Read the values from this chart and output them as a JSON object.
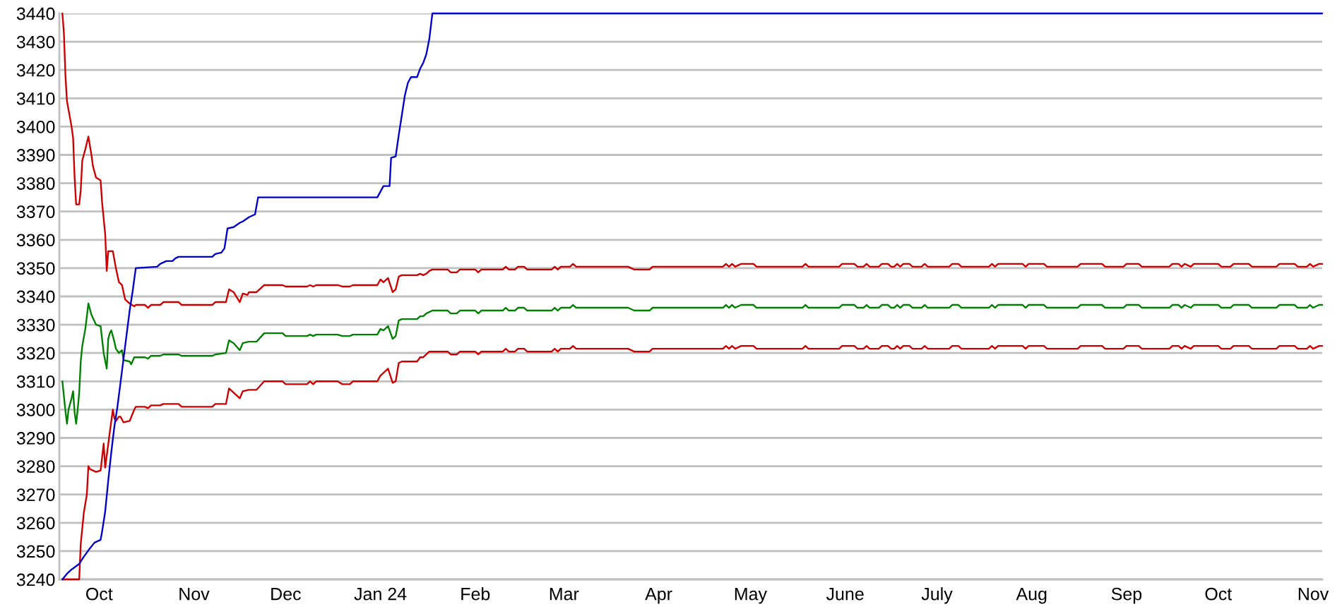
{
  "chart_data": {
    "type": "line",
    "xlim": [
      "2023-09-18",
      "2024-11-04"
    ],
    "xticks": [
      {
        "value": "2023-10-01",
        "label": "Oct"
      },
      {
        "value": "2023-11-01",
        "label": "Nov"
      },
      {
        "value": "2023-12-01",
        "label": "Dec"
      },
      {
        "value": "2024-01-01",
        "label": "Jan 24"
      },
      {
        "value": "2024-02-01",
        "label": "Feb"
      },
      {
        "value": "2024-03-01",
        "label": "Mar"
      },
      {
        "value": "2024-04-01",
        "label": "Apr"
      },
      {
        "value": "2024-05-01",
        "label": "May"
      },
      {
        "value": "2024-06-01",
        "label": "June"
      },
      {
        "value": "2024-07-01",
        "label": "July"
      },
      {
        "value": "2024-08-01",
        "label": "Aug"
      },
      {
        "value": "2024-09-01",
        "label": "Sep"
      },
      {
        "value": "2024-10-01",
        "label": "Oct"
      },
      {
        "value": "2024-11-01",
        "label": "Nov"
      }
    ],
    "ylim": [
      3240,
      3440
    ],
    "yticks": [
      3240,
      3250,
      3260,
      3270,
      3280,
      3290,
      3300,
      3310,
      3320,
      3330,
      3340,
      3350,
      3360,
      3370,
      3380,
      3390,
      3400,
      3410,
      3420,
      3430,
      3440
    ],
    "grid": "y",
    "series": [
      {
        "color": "#cc0000",
        "x": [
          "2023-09-19",
          "2023-09-19T12:00",
          "2023-09-20",
          "2023-09-20T12:00",
          "2023-09-21",
          "2023-09-22",
          "2023-09-22T12:00",
          "2023-09-23",
          "2023-09-23T12:00",
          "2023-09-24T12:00",
          "2023-09-25",
          "2023-09-25T12:00",
          "2023-09-26T12:00",
          "2023-09-27T12:00",
          "2023-09-28T12:00",
          "2023-09-29",
          "2023-09-30",
          "2023-10-01T12:00",
          "2023-10-02",
          "2023-10-03",
          "2023-10-03T12:00",
          "2023-10-04",
          "2023-10-05T12:00",
          "2023-10-06T12:00",
          "2023-10-07T12:00",
          "2023-10-08T12:00",
          "2023-10-09T12:00",
          "2023-10-11",
          "2023-10-12T12:00",
          "2023-10-13",
          "2023-10-16",
          "2023-10-17",
          "2023-10-18",
          "2023-10-21",
          "2023-10-22",
          "2023-10-27",
          "2023-10-28",
          "2023-11-07",
          "2023-11-08",
          "2023-11-11T12:00",
          "2023-11-12T12:00",
          "2023-11-14",
          "2023-11-16",
          "2023-11-17",
          "2023-11-18T12:00",
          "2023-11-19",
          "2023-11-21T12:00",
          "2023-11-24",
          "2023-11-30",
          "2023-12-01",
          "2023-12-08",
          "2023-12-09",
          "2023-12-10",
          "2023-12-11",
          "2023-12-18",
          "2023-12-19T12:00",
          "2023-12-22",
          "2023-12-23",
          "2023-12-31",
          "2024-01-01",
          "2024-01-02",
          "2024-01-03T12:00",
          "2024-01-05",
          "2024-01-06",
          "2024-01-07",
          "2024-01-08",
          "2024-01-13",
          "2024-01-14",
          "2024-01-15",
          "2024-01-16",
          "2024-01-17",
          "2024-01-18",
          "2024-01-23",
          "2024-01-24",
          "2024-01-26",
          "2024-01-27",
          "2024-02-01",
          "2024-02-02",
          "2024-02-03",
          "2024-02-10",
          "2024-02-11",
          "2024-02-12",
          "2024-02-14",
          "2024-02-15",
          "2024-02-17",
          "2024-02-18",
          "2024-02-26",
          "2024-02-27",
          "2024-02-28",
          "2024-02-29",
          "2024-03-03",
          "2024-03-04",
          "2024-03-05",
          "2024-03-22",
          "2024-03-24",
          "2024-03-29",
          "2024-03-30",
          "2024-04-22",
          "2024-04-23",
          "2024-04-24",
          "2024-04-25",
          "2024-04-26",
          "2024-04-28",
          "2024-05-02",
          "2024-05-03",
          "2024-05-18",
          "2024-05-19",
          "2024-05-20",
          "2024-05-30",
          "2024-05-31",
          "2024-06-04",
          "2024-06-05",
          "2024-06-07",
          "2024-06-08",
          "2024-06-09",
          "2024-06-12",
          "2024-06-13",
          "2024-06-15",
          "2024-06-16",
          "2024-06-17",
          "2024-06-18",
          "2024-06-19",
          "2024-06-20",
          "2024-06-22",
          "2024-06-23",
          "2024-06-26",
          "2024-06-27",
          "2024-06-28",
          "2024-07-05",
          "2024-07-06",
          "2024-07-08",
          "2024-07-09",
          "2024-07-18",
          "2024-07-19",
          "2024-07-20",
          "2024-07-21",
          "2024-07-29",
          "2024-07-30",
          "2024-07-31",
          "2024-08-05",
          "2024-08-06",
          "2024-08-16",
          "2024-08-17",
          "2024-08-24",
          "2024-08-25",
          "2024-08-31",
          "2024-09-01",
          "2024-09-05",
          "2024-09-06",
          "2024-09-15",
          "2024-09-16",
          "2024-09-18",
          "2024-09-19",
          "2024-09-20",
          "2024-09-22",
          "2024-09-23",
          "2024-10-01",
          "2024-10-02",
          "2024-10-05",
          "2024-10-06",
          "2024-10-11",
          "2024-10-12",
          "2024-10-20",
          "2024-10-21",
          "2024-10-26",
          "2024-10-27",
          "2024-10-30",
          "2024-10-31",
          "2024-11-01",
          "2024-11-03",
          "2024-11-04"
        ],
        "values": [
          3440,
          3433,
          3418,
          3409,
          3406,
          3400,
          3396,
          3382,
          3372.5,
          3372.5,
          3377.5,
          3388,
          3392,
          3396.5,
          3390,
          3386,
          3382,
          3381,
          3373,
          3362,
          3349,
          3356,
          3356,
          3350,
          3345,
          3344,
          3339,
          3337.5,
          3336.5,
          3337,
          3337,
          3336,
          3337,
          3337,
          3338,
          3338,
          3337,
          3337,
          3338,
          3338,
          3342.5,
          3341.5,
          3338,
          3341,
          3340.5,
          3341.5,
          3341.5,
          3344,
          3344,
          3343.5,
          3343.5,
          3344,
          3343.5,
          3344,
          3344,
          3343.5,
          3343.5,
          3344,
          3344,
          3346,
          3345,
          3346.5,
          3341.5,
          3342.5,
          3347,
          3347.5,
          3347.5,
          3348,
          3347.5,
          3348,
          3349,
          3349.5,
          3349.5,
          3348.5,
          3348.5,
          3349.5,
          3349.5,
          3348.5,
          3349.5,
          3349.5,
          3350.5,
          3349.5,
          3349.5,
          3350.5,
          3350.5,
          3349.5,
          3349.5,
          3350.5,
          3349.5,
          3350.5,
          3350.5,
          3351.5,
          3350.5,
          3350.5,
          3349.5,
          3349.5,
          3350.5,
          3350.5,
          3351.5,
          3350.5,
          3351.5,
          3350.5,
          3351.5,
          3351.5,
          3350.5,
          3350.5,
          3351.5,
          3350.5,
          3350.5,
          3351.5,
          3351.5,
          3350.5,
          3350.5,
          3351.5,
          3350.5,
          3350.5,
          3351.5,
          3351.5,
          3350.5,
          3350.5,
          3351.5,
          3350.5,
          3351.5,
          3351.5,
          3350.5,
          3350.5,
          3351.5,
          3350.5,
          3350.5,
          3351.5,
          3351.5,
          3350.5,
          3350.5,
          3351.5,
          3350.5,
          3351.5,
          3351.5,
          3350.5,
          3351.5,
          3351.5,
          3350.5,
          3350.5,
          3351.5,
          3351.5,
          3350.5,
          3350.5,
          3351.5,
          3351.5,
          3350.5,
          3350.5,
          3351.5,
          3351.5,
          3350.5,
          3351.5,
          3350.5,
          3351.5,
          3351.5,
          3350.5,
          3350.5,
          3351.5,
          3351.5,
          3350.5,
          3350.5,
          3351.5,
          3351.5,
          3350.5,
          3350.5,
          3351.5,
          3350.5,
          3351.5,
          3351.5
        ]
      },
      {
        "color": "#008000",
        "x": [
          "2023-09-19",
          "2023-09-20",
          "2023-09-20T12:00",
          "2023-09-21",
          "2023-09-22",
          "2023-09-22T12:00",
          "2023-09-23",
          "2023-09-23T12:00",
          "2023-09-24",
          "2023-09-24T12:00",
          "2023-09-25",
          "2023-09-25T12:00",
          "2023-09-26T12:00",
          "2023-09-27T12:00",
          "2023-09-28T12:00",
          "2023-09-30",
          "2023-10-01T12:00",
          "2023-10-02T12:00",
          "2023-10-03T12:00",
          "2023-10-04",
          "2023-10-04T12:00",
          "2023-10-05",
          "2023-10-06",
          "2023-10-06T12:00",
          "2023-10-07T12:00",
          "2023-10-08T12:00",
          "2023-10-09",
          "2023-10-11",
          "2023-10-11T12:00",
          "2023-10-12T12:00",
          "2023-10-16",
          "2023-10-17",
          "2023-10-18",
          "2023-10-21",
          "2023-10-22",
          "2023-10-27",
          "2023-10-28",
          "2023-11-07",
          "2023-11-08",
          "2023-11-11T12:00",
          "2023-11-12T12:00",
          "2023-11-14",
          "2023-11-16",
          "2023-11-17",
          "2023-11-19",
          "2023-11-21T12:00",
          "2023-11-24",
          "2023-11-30",
          "2023-12-01",
          "2023-12-08",
          "2023-12-09",
          "2023-12-10",
          "2023-12-11",
          "2023-12-18",
          "2023-12-19T12:00",
          "2023-12-22",
          "2023-12-23",
          "2023-12-31",
          "2024-01-01",
          "2024-01-02",
          "2024-01-03T12:00",
          "2024-01-05",
          "2024-01-06",
          "2024-01-07",
          "2024-01-08",
          "2024-01-13",
          "2024-01-14",
          "2024-01-15",
          "2024-01-16",
          "2024-01-17",
          "2024-01-18",
          "2024-01-23",
          "2024-01-24",
          "2024-01-26",
          "2024-01-27",
          "2024-02-01",
          "2024-02-02",
          "2024-02-03",
          "2024-02-10",
          "2024-02-11",
          "2024-02-12",
          "2024-02-14",
          "2024-02-15",
          "2024-02-17",
          "2024-02-18",
          "2024-02-26",
          "2024-02-27",
          "2024-02-28",
          "2024-02-29",
          "2024-03-03",
          "2024-03-04",
          "2024-03-05",
          "2024-03-22",
          "2024-03-24",
          "2024-03-29",
          "2024-03-30",
          "2024-04-22",
          "2024-04-23",
          "2024-04-24",
          "2024-04-25",
          "2024-04-26",
          "2024-04-28",
          "2024-05-02",
          "2024-05-03",
          "2024-05-18",
          "2024-05-19",
          "2024-05-20",
          "2024-05-30",
          "2024-05-31",
          "2024-06-04",
          "2024-06-05",
          "2024-06-07",
          "2024-06-08",
          "2024-06-09",
          "2024-06-12",
          "2024-06-13",
          "2024-06-15",
          "2024-06-16",
          "2024-06-17",
          "2024-06-18",
          "2024-06-19",
          "2024-06-20",
          "2024-06-22",
          "2024-06-23",
          "2024-06-26",
          "2024-06-27",
          "2024-06-28",
          "2024-07-05",
          "2024-07-06",
          "2024-07-08",
          "2024-07-09",
          "2024-07-18",
          "2024-07-19",
          "2024-07-20",
          "2024-07-21",
          "2024-07-29",
          "2024-07-30",
          "2024-07-31",
          "2024-08-05",
          "2024-08-06",
          "2024-08-16",
          "2024-08-17",
          "2024-08-24",
          "2024-08-25",
          "2024-08-31",
          "2024-09-01",
          "2024-09-05",
          "2024-09-06",
          "2024-09-15",
          "2024-09-16",
          "2024-09-18",
          "2024-09-19",
          "2024-09-20",
          "2024-09-22",
          "2024-09-23",
          "2024-10-01",
          "2024-10-02",
          "2024-10-05",
          "2024-10-06",
          "2024-10-11",
          "2024-10-12",
          "2024-10-20",
          "2024-10-21",
          "2024-10-26",
          "2024-10-27",
          "2024-10-30",
          "2024-10-31",
          "2024-11-01",
          "2024-11-03",
          "2024-11-04"
        ],
        "values": [
          3310,
          3299.5,
          3295,
          3300,
          3304,
          3306.5,
          3299,
          3295,
          3300,
          3306,
          3317,
          3322.5,
          3328.5,
          3337.5,
          3333.5,
          3330,
          3329.5,
          3320,
          3314.5,
          3325,
          3327,
          3328,
          3324,
          3321.5,
          3320,
          3321,
          3317.5,
          3317,
          3316,
          3318.5,
          3318.5,
          3318,
          3319,
          3319,
          3319.5,
          3319.5,
          3319,
          3319,
          3319.5,
          3320,
          3324.5,
          3323.5,
          3321,
          3323.5,
          3324,
          3324,
          3327,
          3327,
          3326,
          3326,
          3326.5,
          3326,
          3326.5,
          3326.5,
          3326,
          3326,
          3326.5,
          3326.5,
          3328.5,
          3328,
          3329.5,
          3325,
          3326,
          3331.5,
          3332,
          3332,
          3333,
          3333,
          3334,
          3334.5,
          3335,
          3335,
          3334,
          3334,
          3335,
          3335,
          3334,
          3335,
          3335,
          3336,
          3335,
          3335,
          3336,
          3336,
          3335,
          3335,
          3336,
          3335,
          3336,
          3336,
          3337,
          3336,
          3336,
          3335,
          3335,
          3336,
          3336,
          3337,
          3336,
          3337,
          3336,
          3337,
          3337,
          3336,
          3336,
          3337,
          3336,
          3336,
          3337,
          3337,
          3336,
          3336,
          3337,
          3336,
          3336,
          3337,
          3337,
          3336,
          3336,
          3337,
          3336,
          3337,
          3337,
          3336,
          3336,
          3337,
          3336,
          3336,
          3337,
          3337,
          3336,
          3336,
          3337,
          3336,
          3337,
          3337,
          3336,
          3337,
          3337,
          3336,
          3336,
          3337,
          3337,
          3336,
          3336,
          3337,
          3337,
          3336,
          3336,
          3337,
          3337,
          3336,
          3337,
          3336,
          3337,
          3337,
          3336,
          3336,
          3337,
          3337,
          3336,
          3336,
          3337,
          3337,
          3336,
          3336,
          3337,
          3336,
          3337,
          3337
        ]
      },
      {
        "color": "#cc0000",
        "x": [
          "2023-09-19",
          "2023-09-24T12:00",
          "2023-09-25",
          "2023-09-26",
          "2023-09-27",
          "2023-09-27T12:00",
          "2023-09-28",
          "2023-09-30",
          "2023-10-01T12:00",
          "2023-10-02T12:00",
          "2023-10-03",
          "2023-10-04T12:00",
          "2023-10-05T12:00",
          "2023-10-06",
          "2023-10-06T12:00",
          "2023-10-07T12:00",
          "2023-10-08",
          "2023-10-09",
          "2023-10-11",
          "2023-10-12T12:00",
          "2023-10-13",
          "2023-10-16",
          "2023-10-17",
          "2023-10-18",
          "2023-10-21",
          "2023-10-22",
          "2023-10-27",
          "2023-10-28",
          "2023-11-07",
          "2023-11-08",
          "2023-11-11T12:00",
          "2023-11-12T12:00",
          "2023-11-14",
          "2023-11-16",
          "2023-11-17",
          "2023-11-19",
          "2023-11-21T12:00",
          "2023-11-24",
          "2023-11-30",
          "2023-12-01",
          "2023-12-08",
          "2023-12-09",
          "2023-12-10",
          "2023-12-11",
          "2023-12-18",
          "2023-12-19T12:00",
          "2023-12-22",
          "2023-12-23",
          "2023-12-31",
          "2024-01-01",
          "2024-01-02",
          "2024-01-03T12:00",
          "2024-01-05",
          "2024-01-06",
          "2024-01-07",
          "2024-01-08",
          "2024-01-13",
          "2024-01-14",
          "2024-01-15",
          "2024-01-16",
          "2024-01-17",
          "2024-01-18",
          "2024-01-23",
          "2024-01-24",
          "2024-01-26",
          "2024-01-27",
          "2024-02-01",
          "2024-02-02",
          "2024-02-03",
          "2024-02-10",
          "2024-02-11",
          "2024-02-12",
          "2024-02-14",
          "2024-02-15",
          "2024-02-17",
          "2024-02-18",
          "2024-02-26",
          "2024-02-27",
          "2024-02-28",
          "2024-02-29",
          "2024-03-03",
          "2024-03-04",
          "2024-03-05",
          "2024-03-22",
          "2024-03-24",
          "2024-03-29",
          "2024-03-30",
          "2024-04-22",
          "2024-04-23",
          "2024-04-24",
          "2024-04-25",
          "2024-04-26",
          "2024-04-28",
          "2024-05-02",
          "2024-05-03",
          "2024-05-18",
          "2024-05-19",
          "2024-05-20",
          "2024-05-30",
          "2024-05-31",
          "2024-06-04",
          "2024-06-05",
          "2024-06-07",
          "2024-06-08",
          "2024-06-09",
          "2024-06-12",
          "2024-06-13",
          "2024-06-15",
          "2024-06-16",
          "2024-06-17",
          "2024-06-18",
          "2024-06-19",
          "2024-06-20",
          "2024-06-22",
          "2024-06-23",
          "2024-06-26",
          "2024-06-27",
          "2024-06-28",
          "2024-07-05",
          "2024-07-06",
          "2024-07-08",
          "2024-07-09",
          "2024-07-18",
          "2024-07-19",
          "2024-07-20",
          "2024-07-21",
          "2024-07-29",
          "2024-07-30",
          "2024-07-31",
          "2024-08-05",
          "2024-08-06",
          "2024-08-16",
          "2024-08-17",
          "2024-08-24",
          "2024-08-25",
          "2024-08-31",
          "2024-09-01",
          "2024-09-05",
          "2024-09-06",
          "2024-09-15",
          "2024-09-16",
          "2024-09-18",
          "2024-09-19",
          "2024-09-20",
          "2024-09-22",
          "2024-09-23",
          "2024-10-01",
          "2024-10-02",
          "2024-10-05",
          "2024-10-06",
          "2024-10-11",
          "2024-10-12",
          "2024-10-20",
          "2024-10-21",
          "2024-10-26",
          "2024-10-27",
          "2024-10-30",
          "2024-10-31",
          "2024-11-01",
          "2024-11-03",
          "2024-11-04"
        ],
        "values": [
          3240,
          3240,
          3252.5,
          3263.5,
          3270,
          3280,
          3279,
          3278,
          3278.5,
          3288,
          3279.5,
          3292,
          3300,
          3297,
          3296,
          3297.5,
          3297.5,
          3295.5,
          3296,
          3300,
          3301,
          3301,
          3300.5,
          3301.5,
          3301.5,
          3302,
          3302,
          3301,
          3301,
          3302,
          3302,
          3307.5,
          3306,
          3304,
          3306.5,
          3307,
          3307,
          3310,
          3310,
          3309,
          3309,
          3310,
          3309,
          3310,
          3310,
          3309,
          3309,
          3310,
          3310,
          3312,
          3313,
          3314.5,
          3309.5,
          3310,
          3316.5,
          3317,
          3317,
          3318.5,
          3318.5,
          3319.5,
          3320.5,
          3320.5,
          3320.5,
          3319.5,
          3319.5,
          3320.5,
          3320.5,
          3319.5,
          3320.5,
          3320.5,
          3321.5,
          3320.5,
          3320.5,
          3321.5,
          3321.5,
          3320.5,
          3320.5,
          3321.5,
          3320.5,
          3321.5,
          3321.5,
          3322.5,
          3321.5,
          3321.5,
          3320.5,
          3320.5,
          3321.5,
          3321.5,
          3322.5,
          3321.5,
          3322.5,
          3321.5,
          3322.5,
          3322.5,
          3321.5,
          3321.5,
          3322.5,
          3321.5,
          3321.5,
          3322.5,
          3322.5,
          3321.5,
          3321.5,
          3322.5,
          3321.5,
          3321.5,
          3322.5,
          3322.5,
          3321.5,
          3321.5,
          3322.5,
          3321.5,
          3322.5,
          3322.5,
          3321.5,
          3321.5,
          3322.5,
          3321.5,
          3321.5,
          3322.5,
          3322.5,
          3321.5,
          3321.5,
          3322.5,
          3321.5,
          3322.5,
          3322.5,
          3321.5,
          3322.5,
          3322.5,
          3321.5,
          3321.5,
          3322.5,
          3322.5,
          3321.5,
          3321.5,
          3322.5,
          3322.5,
          3321.5,
          3321.5,
          3322.5,
          3322.5,
          3321.5,
          3322.5,
          3321.5,
          3322.5,
          3322.5,
          3321.5,
          3321.5,
          3322.5,
          3322.5,
          3321.5,
          3321.5,
          3322.5,
          3322.5,
          3321.5,
          3321.5,
          3322.5,
          3321.5,
          3322.5,
          3322.5
        ]
      },
      {
        "color": "#0000cc",
        "x": [
          "2023-09-19",
          "2023-09-20T12:00",
          "2023-09-22",
          "2023-09-24T12:00",
          "2023-09-26",
          "2023-09-28",
          "2023-09-29T12:00",
          "2023-10-01T12:00",
          "2023-10-02",
          "2023-10-03",
          "2023-10-04",
          "2023-10-05",
          "2023-10-06",
          "2023-10-07",
          "2023-10-08",
          "2023-10-09",
          "2023-10-10",
          "2023-10-11",
          "2023-10-12",
          "2023-10-13",
          "2023-10-20",
          "2023-10-21",
          "2023-10-23",
          "2023-10-25",
          "2023-10-26",
          "2023-10-27",
          "2023-11-07",
          "2023-11-08",
          "2023-11-10",
          "2023-11-11",
          "2023-11-12",
          "2023-11-14",
          "2023-11-16",
          "2023-11-17",
          "2023-11-19",
          "2023-11-21",
          "2023-11-22",
          "2023-12-31",
          "2024-01-01",
          "2024-01-02",
          "2024-01-04",
          "2024-01-04T12:00",
          "2024-01-06",
          "2024-01-07",
          "2024-01-08",
          "2024-01-09",
          "2024-01-10",
          "2024-01-11",
          "2024-01-13",
          "2024-01-14",
          "2024-01-15",
          "2024-01-16",
          "2024-01-17",
          "2024-01-18",
          "2024-11-04"
        ],
        "values": [
          3240,
          3242,
          3243.5,
          3245.5,
          3248,
          3251,
          3253,
          3254,
          3257,
          3264,
          3275,
          3285,
          3294,
          3301,
          3309.5,
          3318,
          3326.5,
          3335,
          3342,
          3350,
          3350.5,
          3351.5,
          3352.5,
          3352.5,
          3353.5,
          3354,
          3354,
          3355,
          3355.5,
          3357,
          3364,
          3364.5,
          3366,
          3366.5,
          3368,
          3369,
          3375,
          3375,
          3377,
          3379,
          3379,
          3389,
          3389.5,
          3397,
          3404,
          3411,
          3415.5,
          3417.5,
          3417.5,
          3420.5,
          3422.5,
          3425.5,
          3431,
          3440,
          3440
        ]
      }
    ]
  }
}
